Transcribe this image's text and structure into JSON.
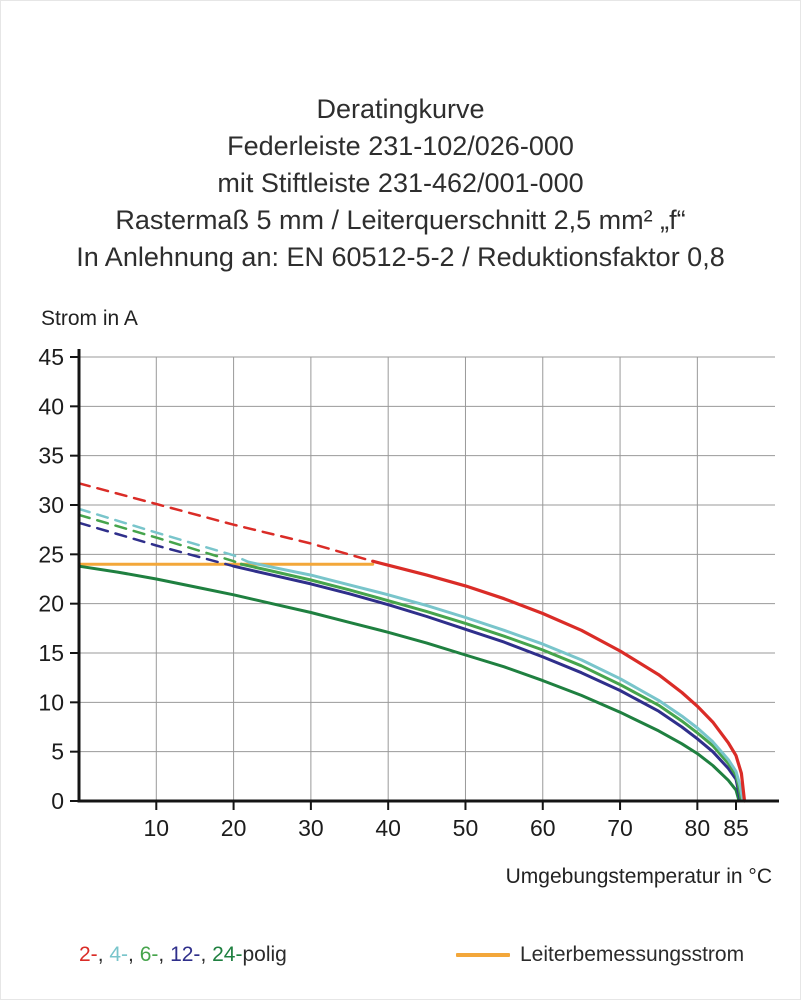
{
  "header": {
    "lines": [
      "Deratingkurve",
      "Federleiste 231-102/026-000",
      "mit Stiftleiste 231-462/001-000",
      "Rastermaß 5 mm / Leiterquerschnitt 2,5 mm² „f“",
      "In Anlehnung an: EN 60512-5-2 / Reduktionsfaktor 0,8"
    ]
  },
  "legend": {
    "items": [
      {
        "text": "2-",
        "color": "#da2c27"
      },
      {
        "text": ", ",
        "color": "#2b2b2b"
      },
      {
        "text": "4-",
        "color": "#79c5cb"
      },
      {
        "text": ", ",
        "color": "#2b2b2b"
      },
      {
        "text": "6-",
        "color": "#46a44c"
      },
      {
        "text": ", ",
        "color": "#2b2b2b"
      },
      {
        "text": "12-",
        "color": "#2f2f8b"
      },
      {
        "text": ", ",
        "color": "#2b2b2b"
      },
      {
        "text": "24-",
        "color": "#1f8040"
      },
      {
        "text": "polig",
        "color": "#2b2b2b"
      }
    ],
    "limit_label": "Leiterbemessungsstrom",
    "limit_color": "#f3a73a"
  },
  "chart_data": {
    "type": "line",
    "title": "Deratingkurve",
    "xlabel": "Umgebungstemperatur in °C",
    "ylabel": "Strom in A",
    "xlim": [
      0,
      90
    ],
    "ylim": [
      0,
      45
    ],
    "xticks": [
      10,
      20,
      30,
      40,
      50,
      60,
      70,
      80,
      85
    ],
    "yticks": [
      0,
      5,
      10,
      15,
      20,
      25,
      30,
      35,
      40,
      45
    ],
    "grid": true,
    "grid_color": "#999999",
    "axis_color": "#141414",
    "text_color": "#1c1c1c",
    "legend_position": "bottom",
    "limit_line": {
      "name": "Leiterbemessungsstrom",
      "color": "#f3a73a",
      "value": 24,
      "points": [
        [
          0,
          24
        ],
        [
          38,
          24
        ]
      ]
    },
    "series": [
      {
        "name": "2-polig (gestrichelt)",
        "color": "#da2c27",
        "dash": true,
        "width": 2.5,
        "points": [
          [
            0,
            32.2
          ],
          [
            10,
            30.1
          ],
          [
            20,
            28.0
          ],
          [
            30,
            26.1
          ],
          [
            38,
            24.3
          ]
        ]
      },
      {
        "name": "4-polig (gestrichelt)",
        "color": "#79c5cb",
        "dash": true,
        "width": 2.5,
        "points": [
          [
            0,
            29.6
          ],
          [
            10,
            27.2
          ],
          [
            20,
            24.9
          ],
          [
            22,
            24.2
          ]
        ]
      },
      {
        "name": "6-polig (gestrichelt)",
        "color": "#46a44c",
        "dash": true,
        "width": 2.5,
        "points": [
          [
            0,
            29.0
          ],
          [
            10,
            26.7
          ],
          [
            20,
            24.3
          ],
          [
            21,
            24.0
          ]
        ]
      },
      {
        "name": "12-polig (gestrichelt)",
        "color": "#2f2f8b",
        "dash": true,
        "width": 2.5,
        "points": [
          [
            0,
            28.2
          ],
          [
            10,
            25.9
          ],
          [
            20,
            23.8
          ]
        ]
      },
      {
        "name": "24-polig",
        "color": "#1f8040",
        "dash": false,
        "width": 3,
        "points": [
          [
            0,
            23.8
          ],
          [
            5,
            23.2
          ],
          [
            10,
            22.5
          ],
          [
            15,
            21.7
          ],
          [
            20,
            20.9
          ],
          [
            25,
            20.0
          ],
          [
            30,
            19.1
          ],
          [
            35,
            18.1
          ],
          [
            40,
            17.1
          ],
          [
            45,
            16.0
          ],
          [
            50,
            14.8
          ],
          [
            55,
            13.6
          ],
          [
            60,
            12.2
          ],
          [
            65,
            10.7
          ],
          [
            70,
            9.0
          ],
          [
            75,
            7.1
          ],
          [
            78,
            5.8
          ],
          [
            80,
            4.8
          ],
          [
            82,
            3.6
          ],
          [
            84,
            2.1
          ],
          [
            85,
            1.1
          ],
          [
            85.4,
            0
          ]
        ]
      },
      {
        "name": "12-polig",
        "color": "#2f2f8b",
        "dash": false,
        "width": 3,
        "points": [
          [
            20,
            23.8
          ],
          [
            25,
            22.9
          ],
          [
            30,
            22.0
          ],
          [
            35,
            21.0
          ],
          [
            40,
            19.9
          ],
          [
            45,
            18.7
          ],
          [
            50,
            17.4
          ],
          [
            55,
            16.1
          ],
          [
            60,
            14.6
          ],
          [
            65,
            13.0
          ],
          [
            70,
            11.2
          ],
          [
            75,
            9.1
          ],
          [
            78,
            7.5
          ],
          [
            80,
            6.3
          ],
          [
            82,
            5.0
          ],
          [
            84,
            3.3
          ],
          [
            85,
            2.2
          ],
          [
            85.6,
            0
          ]
        ]
      },
      {
        "name": "6-polig",
        "color": "#46a44c",
        "dash": false,
        "width": 3,
        "points": [
          [
            21,
            24.0
          ],
          [
            25,
            23.3
          ],
          [
            30,
            22.4
          ],
          [
            35,
            21.4
          ],
          [
            40,
            20.3
          ],
          [
            45,
            19.2
          ],
          [
            50,
            18.0
          ],
          [
            55,
            16.7
          ],
          [
            60,
            15.3
          ],
          [
            65,
            13.7
          ],
          [
            70,
            11.8
          ],
          [
            75,
            9.7
          ],
          [
            78,
            8.1
          ],
          [
            80,
            6.9
          ],
          [
            82,
            5.6
          ],
          [
            84,
            3.8
          ],
          [
            85,
            2.6
          ],
          [
            85.4,
            1.3
          ],
          [
            85.7,
            0
          ]
        ]
      },
      {
        "name": "4-polig",
        "color": "#79c5cb",
        "dash": false,
        "width": 3,
        "points": [
          [
            22,
            24.2
          ],
          [
            25,
            23.7
          ],
          [
            30,
            22.9
          ],
          [
            35,
            21.9
          ],
          [
            40,
            20.9
          ],
          [
            45,
            19.8
          ],
          [
            50,
            18.6
          ],
          [
            55,
            17.3
          ],
          [
            60,
            15.9
          ],
          [
            65,
            14.3
          ],
          [
            70,
            12.4
          ],
          [
            75,
            10.2
          ],
          [
            78,
            8.6
          ],
          [
            80,
            7.4
          ],
          [
            82,
            6.0
          ],
          [
            84,
            4.2
          ],
          [
            85,
            3.0
          ],
          [
            85.5,
            1.6
          ],
          [
            85.9,
            0
          ]
        ]
      },
      {
        "name": "2-polig",
        "color": "#da2c27",
        "dash": false,
        "width": 3.2,
        "points": [
          [
            38,
            24.3
          ],
          [
            40,
            23.9
          ],
          [
            45,
            22.9
          ],
          [
            50,
            21.8
          ],
          [
            55,
            20.5
          ],
          [
            60,
            19.0
          ],
          [
            65,
            17.3
          ],
          [
            70,
            15.2
          ],
          [
            75,
            12.8
          ],
          [
            78,
            11.0
          ],
          [
            80,
            9.6
          ],
          [
            82,
            8.0
          ],
          [
            84,
            5.9
          ],
          [
            85,
            4.6
          ],
          [
            85.7,
            2.8
          ],
          [
            86.1,
            0
          ]
        ]
      }
    ]
  }
}
